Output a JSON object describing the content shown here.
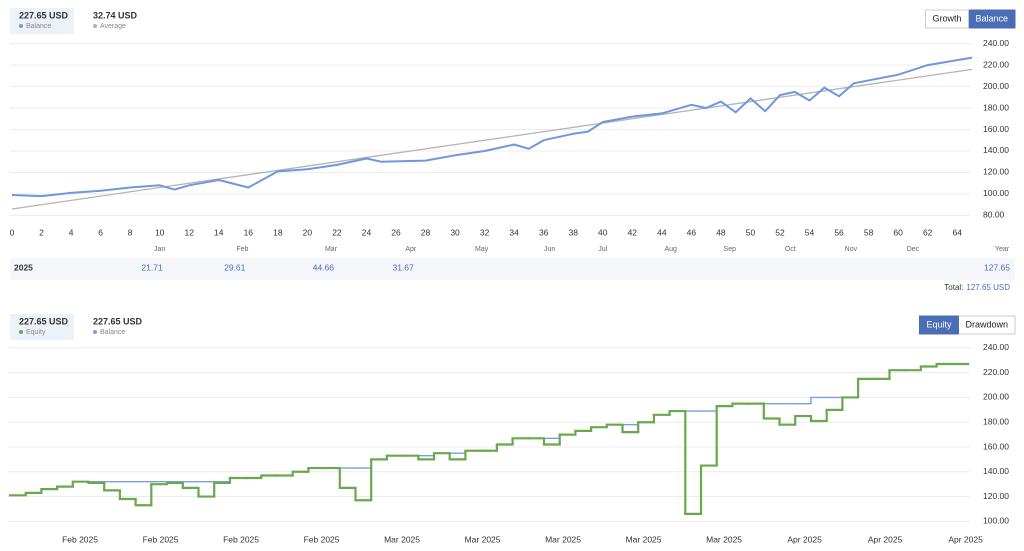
{
  "chart_data": [
    {
      "type": "line",
      "buttons": [
        "Growth",
        "Balance"
      ],
      "active_button": 1,
      "xlim": [
        0,
        65
      ],
      "xticks": [
        0,
        2,
        4,
        6,
        8,
        10,
        12,
        14,
        16,
        18,
        20,
        22,
        24,
        26,
        28,
        30,
        32,
        34,
        36,
        38,
        40,
        42,
        44,
        46,
        48,
        50,
        52,
        54,
        56,
        58,
        60,
        62,
        64
      ],
      "ylim": [
        72,
        248
      ],
      "yticks": [
        {
          "value": 80,
          "label": "80.00"
        },
        {
          "value": 100,
          "label": "100.00"
        },
        {
          "value": 120,
          "label": "120.00"
        },
        {
          "value": 140,
          "label": "140.00"
        },
        {
          "value": 160,
          "label": "160.00"
        },
        {
          "value": 180,
          "label": "180.00"
        },
        {
          "value": 200,
          "label": "200.00"
        },
        {
          "value": 220,
          "label": "220.00"
        },
        {
          "value": 240,
          "label": "240.00"
        }
      ],
      "grid": true,
      "month_labels": [
        {
          "value": 10,
          "label": "Jan"
        },
        {
          "value": 15.6,
          "label": "Feb"
        },
        {
          "value": 21.6,
          "label": "Mar"
        },
        {
          "value": 27,
          "label": "Apr"
        },
        {
          "value": 31.8,
          "label": "May"
        },
        {
          "value": 36.4,
          "label": "Jun"
        },
        {
          "value": 40,
          "label": "Jul"
        },
        {
          "value": 44.6,
          "label": "Aug"
        },
        {
          "value": 48.6,
          "label": "Sep"
        },
        {
          "value": 52.7,
          "label": "Oct"
        },
        {
          "value": 56.8,
          "label": "Nov"
        },
        {
          "value": 61,
          "label": "Dec"
        }
      ],
      "year_table": {
        "header": "Year",
        "rows": [
          {
            "year": "2025",
            "values": [
              21.71,
              29.61,
              44.66,
              31.67
            ],
            "total": 127.65
          }
        ],
        "total_label": "Total:",
        "total_value": "127.65 USD"
      },
      "x": [
        0,
        2,
        4,
        6,
        8,
        10,
        11,
        12,
        14,
        16,
        18,
        20,
        22,
        24,
        25,
        28,
        30,
        32,
        34,
        35,
        36,
        38,
        39,
        40,
        42,
        44,
        46,
        47,
        48,
        49,
        50,
        51,
        52,
        53,
        54,
        55,
        56,
        57,
        60,
        62,
        65
      ],
      "series": [
        {
          "name": "Balance",
          "summary": "227.65 USD",
          "color": "#6f98dc",
          "values": [
            99,
            98,
            101,
            103,
            106,
            108,
            104,
            108,
            113,
            106,
            121,
            123,
            127,
            133,
            130,
            131,
            136,
            140,
            146,
            142,
            150,
            156,
            158,
            167,
            172,
            175,
            183,
            180,
            186,
            176,
            189,
            177,
            192,
            195,
            187,
            199,
            191,
            203,
            211,
            220,
            227
          ]
        },
        {
          "name": "Average",
          "summary": "32.74 USD",
          "color": "#b4b4b4",
          "x": [
            0,
            65
          ],
          "values": [
            86,
            216
          ]
        }
      ]
    },
    {
      "type": "step",
      "buttons": [
        "Equity",
        "Drawdown"
      ],
      "active_button": 0,
      "ylim": [
        93,
        248
      ],
      "yticks": [
        {
          "value": 100,
          "label": "100.00"
        },
        {
          "value": 120,
          "label": "120.00"
        },
        {
          "value": 140,
          "label": "140.00"
        },
        {
          "value": 160,
          "label": "160.00"
        },
        {
          "value": 180,
          "label": "180.00"
        },
        {
          "value": 200,
          "label": "200.00"
        },
        {
          "value": 220,
          "label": "220.00"
        },
        {
          "value": 240,
          "label": "240.00"
        }
      ],
      "grid": true,
      "x_labels": [
        "Feb 2025",
        "Feb 2025",
        "Feb 2025",
        "Feb 2025",
        "Mar 2025",
        "Mar 2025",
        "Mar 2025",
        "Mar 2025",
        "Mar 2025",
        "Apr 2025",
        "Apr 2025",
        "Apr 2025"
      ],
      "series": [
        {
          "name": "Equity",
          "summary": "227.65 USD",
          "color": "#6aa84f",
          "values": [
            121,
            123,
            126,
            128,
            132,
            131,
            125,
            118,
            113,
            130,
            131,
            127,
            120,
            131,
            135,
            135,
            137,
            137,
            140,
            143,
            143,
            127,
            117,
            150,
            153,
            153,
            150,
            155,
            150,
            157,
            157,
            162,
            167,
            167,
            162,
            170,
            173,
            176,
            178,
            172,
            180,
            186,
            189,
            106,
            145,
            193,
            195,
            195,
            183,
            178,
            185,
            181,
            190,
            200,
            215,
            215,
            222,
            222,
            225,
            227,
            227
          ]
        },
        {
          "name": "Balance",
          "summary": "227.65 USD",
          "color": "#7a9fe0",
          "values": [
            121,
            123,
            126,
            128,
            132,
            132,
            132,
            132,
            132,
            132,
            132,
            132,
            132,
            132,
            135,
            135,
            137,
            137,
            140,
            143,
            143,
            143,
            143,
            150,
            153,
            153,
            153,
            155,
            155,
            157,
            157,
            162,
            167,
            167,
            167,
            170,
            173,
            176,
            178,
            178,
            180,
            186,
            189,
            189,
            189,
            193,
            195,
            195,
            195,
            195,
            195,
            200,
            200,
            200,
            215,
            215,
            222,
            222,
            225,
            227,
            227
          ]
        }
      ]
    }
  ]
}
